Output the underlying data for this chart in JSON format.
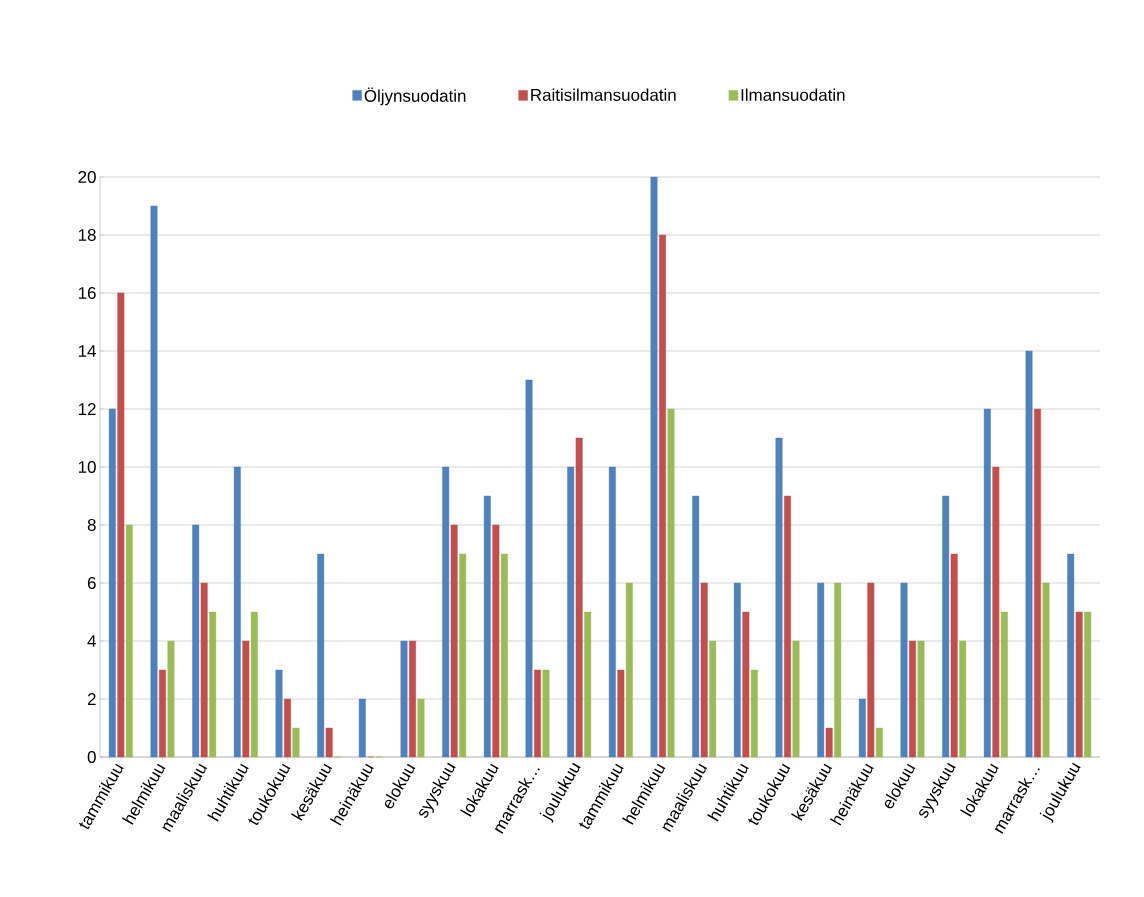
{
  "chart_data": {
    "type": "bar",
    "categories": [
      "tammikuu",
      "helmikuu",
      "maaliskuu",
      "huhtikuu",
      "toukokuu",
      "kesäkuu",
      "heinäkuu",
      "elokuu",
      "syyskuu",
      "lokakuu",
      "marrask…",
      "joulukuu",
      "tammikuu",
      "helmikuu",
      "maaliskuu",
      "huhtikuu",
      "toukokuu",
      "kesäkuu",
      "heinäkuu",
      "elokuu",
      "syyskuu",
      "lokakuu",
      "marrask…",
      "joulukuu"
    ],
    "series": [
      {
        "name": "Öljynsuodatin",
        "color": "#4f81bd",
        "values": [
          12,
          19,
          8,
          10,
          3,
          7,
          2,
          4,
          10,
          9,
          13,
          10,
          10,
          20,
          9,
          6,
          11,
          6,
          2,
          6,
          9,
          12,
          14,
          7
        ]
      },
      {
        "name": "Raitisilmansuodatin",
        "color": "#c0504d",
        "values": [
          16,
          3,
          6,
          4,
          2,
          1,
          0,
          4,
          8,
          8,
          3,
          11,
          3,
          18,
          6,
          5,
          9,
          1,
          6,
          4,
          7,
          10,
          12,
          5
        ]
      },
      {
        "name": "Ilmansuodatin",
        "color": "#9bbb59",
        "values": [
          8,
          4,
          5,
          5,
          1,
          0,
          0,
          2,
          7,
          7,
          3,
          5,
          6,
          12,
          4,
          3,
          4,
          6,
          1,
          4,
          4,
          5,
          6,
          5
        ]
      }
    ],
    "ylim": [
      0,
      20
    ],
    "yticks": [
      0,
      2,
      4,
      6,
      8,
      10,
      12,
      14,
      16,
      18,
      20
    ],
    "grid": "y",
    "legend": "top"
  }
}
